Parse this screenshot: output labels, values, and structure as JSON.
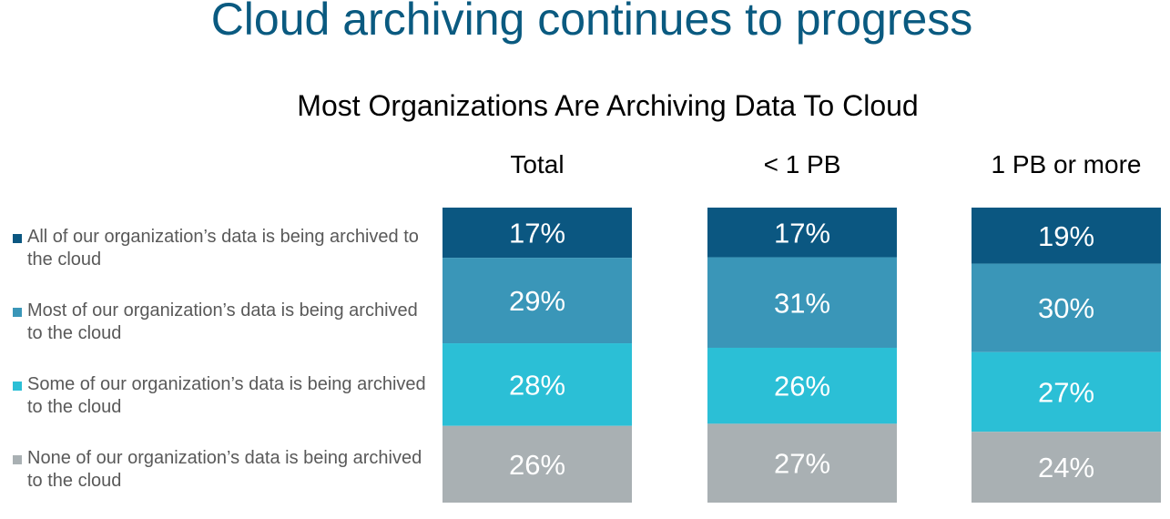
{
  "header": {
    "title": "Cloud archiving continues to progress"
  },
  "chart_data": {
    "type": "bar",
    "stacked": true,
    "percent": true,
    "title": "Most Organizations Are Archiving Data To Cloud",
    "categories": [
      "Total",
      "< 1 PB",
      "1 PB or more"
    ],
    "legend_position": "left",
    "grid": false,
    "series": [
      {
        "name": "All of our organization’s data is being archived to the cloud",
        "color": "#0b5781",
        "values": [
          17,
          17,
          19
        ],
        "labels": [
          "17%",
          "17%",
          "19%"
        ]
      },
      {
        "name": "Most of our organization’s data is being archived to the cloud",
        "color": "#3a96b8",
        "values": [
          29,
          31,
          30
        ],
        "labels": [
          "29%",
          "31%",
          "30%"
        ]
      },
      {
        "name": "Some of our organization’s data is being archived to the cloud",
        "color": "#2bbfd6",
        "values": [
          28,
          26,
          27
        ],
        "labels": [
          "28%",
          "26%",
          "27%"
        ]
      },
      {
        "name": "None of our organization’s data is being archived to the cloud",
        "color": "#a9b0b3",
        "values": [
          26,
          27,
          24
        ],
        "labels": [
          "26%",
          "27%",
          "24%"
        ]
      }
    ]
  }
}
